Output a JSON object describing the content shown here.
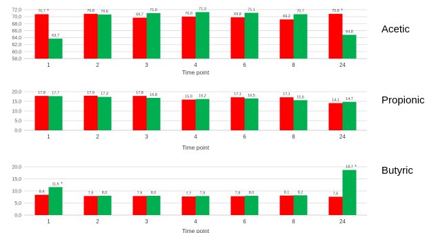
{
  "colors": {
    "series_a": "#ff0000",
    "series_b": "#00b050",
    "grid": "#d9d9d9",
    "axis": "#bfbfbf"
  },
  "chart_data": [
    {
      "type": "bar",
      "title": "Acetic",
      "xlabel": "Time point",
      "ylabel": "",
      "categories": [
        "1",
        "2",
        "3",
        "4",
        "6",
        "8",
        "24"
      ],
      "ylim": [
        58.0,
        72.0
      ],
      "ytick_step": 2.0,
      "grid": true,
      "series": [
        {
          "values": [
            70.7,
            70.8,
            69.7,
            70.0,
            69.8,
            69.2,
            70.8
          ]
        },
        {
          "values": [
            63.7,
            70.6,
            71.0,
            71.3,
            71.1,
            70.7,
            64.8
          ]
        }
      ],
      "annotations": [
        {
          "text": "*",
          "category": "1",
          "series": 0
        },
        {
          "text": "*",
          "category": "24",
          "series": 0
        }
      ]
    },
    {
      "type": "bar",
      "title": "Propionic",
      "xlabel": "Time point",
      "ylabel": "",
      "categories": [
        "1",
        "2",
        "3",
        "4",
        "6",
        "8",
        "24"
      ],
      "ylim": [
        0.0,
        20.0
      ],
      "ytick_step": 5.0,
      "grid": true,
      "series": [
        {
          "values": [
            17.8,
            17.9,
            17.8,
            15.9,
            17.1,
            17.1,
            14.1
          ]
        },
        {
          "values": [
            17.7,
            17.3,
            16.8,
            16.2,
            16.5,
            15.6,
            14.7
          ]
        }
      ],
      "annotations": []
    },
    {
      "type": "bar",
      "title": "Butyric",
      "xlabel": "Time point",
      "ylabel": "",
      "categories": [
        "1",
        "2",
        "3",
        "4",
        "6",
        "8",
        "24"
      ],
      "ylim": [
        0.0,
        20.0
      ],
      "ytick_step": 5.0,
      "grid": true,
      "series": [
        {
          "values": [
            8.4,
            7.9,
            7.9,
            7.7,
            7.8,
            8.1,
            7.6
          ]
        },
        {
          "values": [
            11.6,
            8.0,
            8.0,
            7.9,
            8.0,
            8.2,
            18.7
          ]
        }
      ],
      "annotations": [
        {
          "text": "*",
          "category": "1",
          "series": 1
        },
        {
          "text": "*",
          "category": "24",
          "series": 1
        }
      ]
    }
  ]
}
